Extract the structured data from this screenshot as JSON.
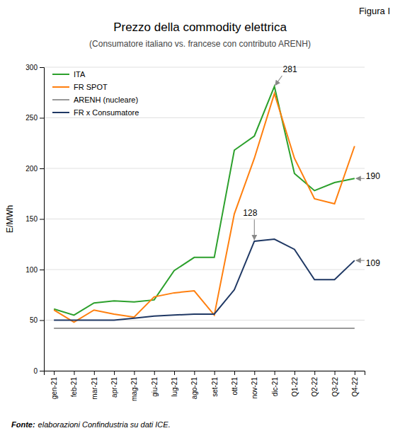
{
  "chart_data": {
    "type": "line",
    "title": "Prezzo della commodity elettrica",
    "subtitle": "(Consumatore italiano vs. francese con contributo ARENH)",
    "figure_label": "Figura I",
    "y_label": "E/MWh",
    "source_label": "Fonte:",
    "source": "elaborazioni Confindustria su dati ICE.",
    "categories": [
      "gen-21",
      "feb-21",
      "mar-21",
      "apr-21",
      "mag-21",
      "giu-21",
      "lug-21",
      "ago-21",
      "set-21",
      "ott-21",
      "nov-21",
      "dic-21",
      "Q1-22",
      "Q2-22",
      "Q3-22",
      "Q4-22"
    ],
    "series": [
      {
        "name": "ITA",
        "color": "#2ca02c",
        "values": [
          61,
          55,
          67,
          69,
          68,
          70,
          99,
          112,
          112,
          218,
          232,
          281,
          195,
          178,
          186,
          190
        ]
      },
      {
        "name": "FR SPOT",
        "color": "#ff7f0e",
        "values": [
          60,
          48,
          60,
          56,
          53,
          73,
          77,
          79,
          55,
          155,
          210,
          274,
          210,
          170,
          165,
          222
        ]
      },
      {
        "name": "ARENH (nucleare)",
        "color": "#999999",
        "values": [
          42,
          42,
          42,
          42,
          42,
          42,
          42,
          42,
          42,
          42,
          42,
          42,
          42,
          42,
          42,
          42
        ]
      },
      {
        "name": "FR x Consumatore",
        "color": "#1f3864",
        "values": [
          50,
          50,
          50,
          50,
          52,
          54,
          55,
          56,
          56,
          80,
          128,
          130,
          120,
          90,
          90,
          109
        ]
      }
    ],
    "annotations": [
      {
        "text": "281",
        "x": "dic-21",
        "y": 281
      },
      {
        "text": "128",
        "x": "nov-21",
        "y": 128
      },
      {
        "text": "190",
        "x": "Q4-22",
        "y": 190
      },
      {
        "text": "109",
        "x": "Q4-22",
        "y": 109
      }
    ],
    "ylim": [
      0,
      300
    ],
    "yticks": [
      0,
      50,
      100,
      150,
      200,
      250,
      300
    ],
    "grid": true,
    "legend": "upper left"
  }
}
